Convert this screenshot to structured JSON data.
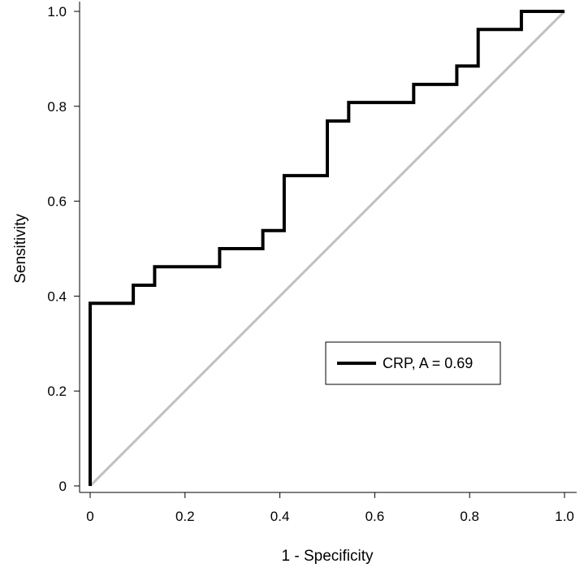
{
  "chart_data": {
    "type": "line",
    "title": "",
    "xlabel": "1 - Specificity",
    "ylabel": "Sensitivity",
    "xlim": [
      0,
      1
    ],
    "ylim": [
      0,
      1
    ],
    "x_ticks": [
      {
        "value": 0,
        "label": "0"
      },
      {
        "value": 0.2,
        "label": "0.2"
      },
      {
        "value": 0.4,
        "label": "0.4"
      },
      {
        "value": 0.6,
        "label": "0.6"
      },
      {
        "value": 0.8,
        "label": "0.8"
      },
      {
        "value": 1.0,
        "label": "1.0"
      }
    ],
    "y_ticks": [
      {
        "value": 0,
        "label": "0"
      },
      {
        "value": 0.2,
        "label": "0.2"
      },
      {
        "value": 0.4,
        "label": "0.4"
      },
      {
        "value": 0.6,
        "label": "0.6"
      },
      {
        "value": 0.8,
        "label": "0.8"
      },
      {
        "value": 1.0,
        "label": "1.0"
      }
    ],
    "grid": false,
    "legend_position": "center-right",
    "series": [
      {
        "name": "CRP, A = 0.69",
        "color": "#000000",
        "step": true,
        "x": [
          0,
          0,
          0.091,
          0.091,
          0.136,
          0.136,
          0.273,
          0.273,
          0.364,
          0.364,
          0.409,
          0.409,
          0.5,
          0.5,
          0.545,
          0.545,
          0.682,
          0.682,
          0.773,
          0.773,
          0.818,
          0.818,
          0.909,
          0.909,
          1.0
        ],
        "y": [
          0,
          0.385,
          0.385,
          0.423,
          0.423,
          0.462,
          0.462,
          0.5,
          0.5,
          0.538,
          0.538,
          0.654,
          0.654,
          0.769,
          0.769,
          0.808,
          0.808,
          0.846,
          0.846,
          0.885,
          0.885,
          0.962,
          0.962,
          1.0,
          1.0
        ]
      },
      {
        "color": "#c0c0c0",
        "x": [
          0,
          1
        ],
        "y": [
          0,
          1
        ]
      }
    ]
  }
}
